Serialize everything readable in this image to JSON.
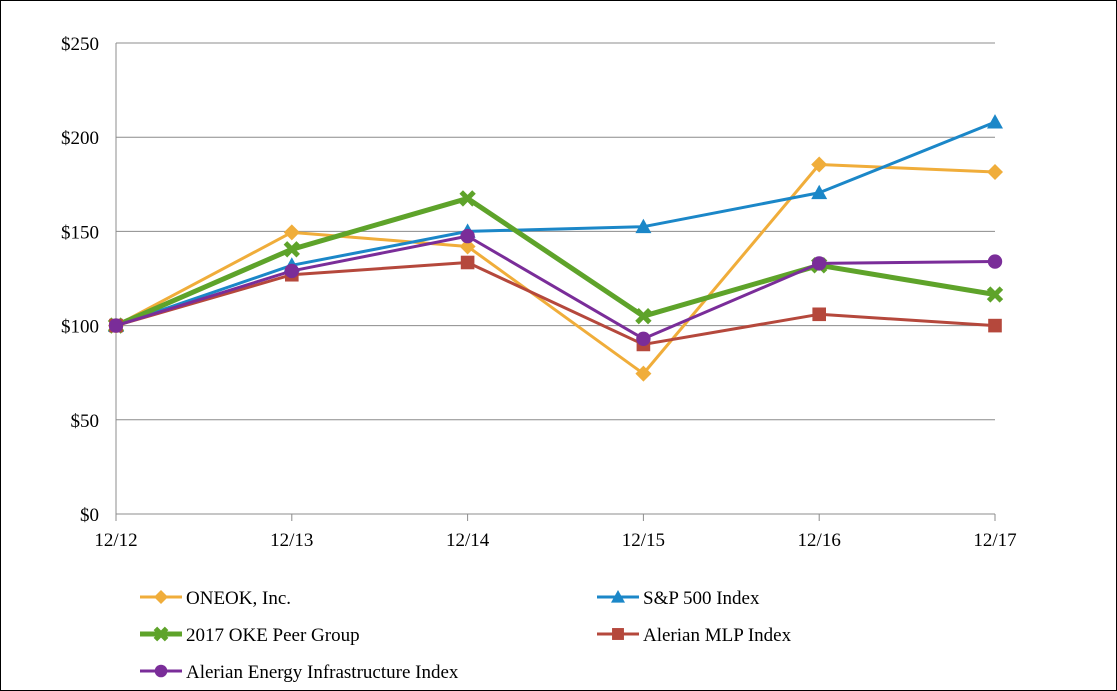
{
  "chart_data": {
    "type": "line",
    "title": "",
    "xlabel": "",
    "ylabel": "",
    "categories": [
      "12/12",
      "12/13",
      "12/14",
      "12/15",
      "12/16",
      "12/17"
    ],
    "ylim": [
      0,
      250
    ],
    "yticks": [
      0,
      50,
      100,
      150,
      200,
      250
    ],
    "ytick_labels": [
      "$0",
      "$50",
      "$100",
      "$150",
      "$200",
      "$250"
    ],
    "grid": true,
    "legend_position": "bottom",
    "series": [
      {
        "name": "ONEOK, Inc.",
        "color": "#f0ad3a",
        "marker": "diamond",
        "width": 3,
        "values": [
          100,
          149.5,
          142,
          74.5,
          185.5,
          181.5
        ]
      },
      {
        "name": "S&P 500 Index",
        "color": "#1b87c8",
        "marker": "triangle",
        "width": 3,
        "values": [
          100,
          132,
          150,
          152.5,
          170.5,
          208
        ]
      },
      {
        "name": "2017 OKE Peer Group",
        "color": "#5ea32a",
        "marker": "x",
        "width": 5,
        "values": [
          100,
          140.5,
          167.5,
          105,
          132,
          116.5
        ]
      },
      {
        "name": "Alerian MLP Index",
        "color": "#b5483c",
        "marker": "square",
        "width": 3,
        "values": [
          100,
          127,
          133.5,
          90,
          106,
          100
        ]
      },
      {
        "name": "Alerian Energy Infrastructure Index",
        "color": "#7a2d99",
        "marker": "circle",
        "width": 3,
        "values": [
          100,
          129,
          147.5,
          93,
          133,
          134
        ]
      }
    ]
  }
}
